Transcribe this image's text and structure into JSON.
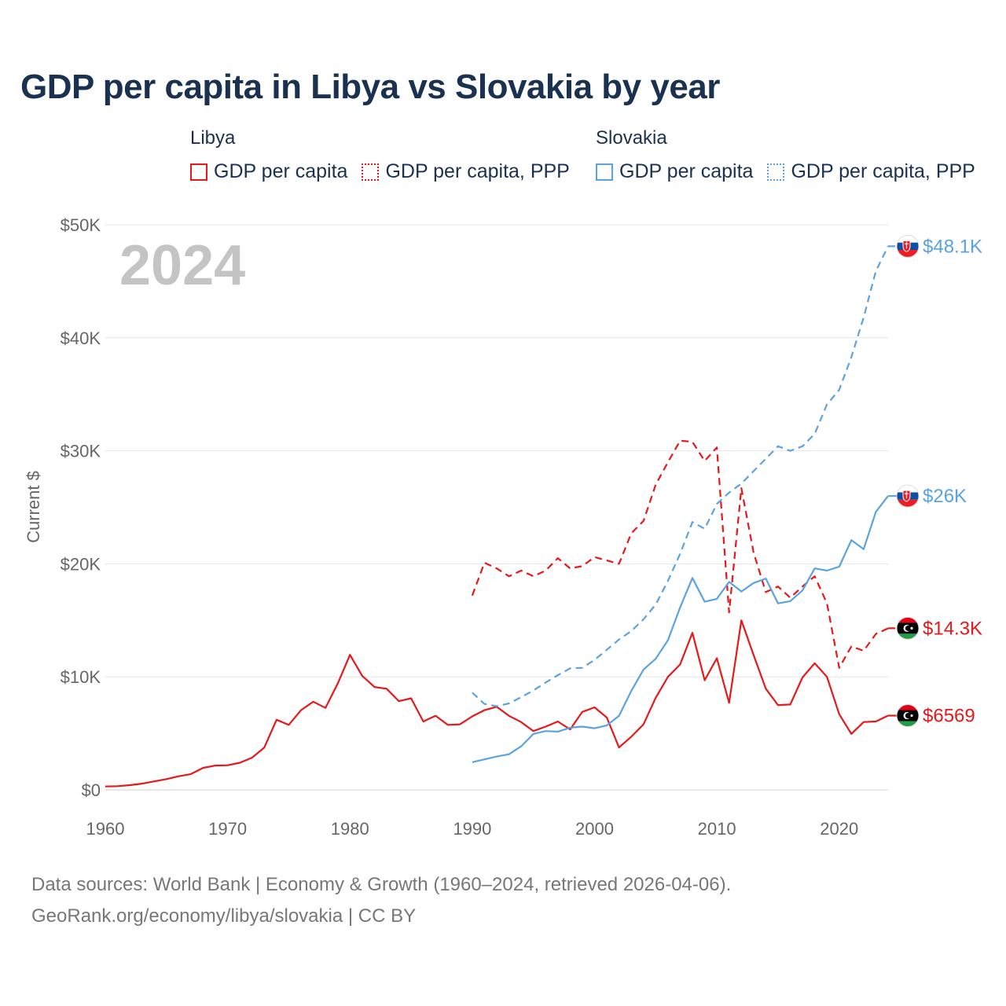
{
  "title": "GDP per capita in Libya vs Slovakia by year",
  "legend": {
    "groups": [
      {
        "country": "Libya",
        "items": [
          "GDP per capita",
          "GDP per capita, PPP"
        ],
        "color": "#e8171a"
      },
      {
        "country": "Slovakia",
        "items": [
          "GDP per capita",
          "GDP per capita, PPP"
        ],
        "color": "#5ba3e0"
      }
    ]
  },
  "footer": {
    "line1": "Data sources: World Bank | Economy & Growth (1960–2024, retrieved 2026-04-06).",
    "line2": "GeoRank.org/economy/libya/slovakia | CC BY"
  },
  "chart_data": {
    "type": "line",
    "year_label": "2024",
    "ylabel": "Current $",
    "xlim": [
      1960,
      2024
    ],
    "ylim": [
      0,
      50000
    ],
    "x_ticks": [
      1960,
      1970,
      1980,
      1990,
      2000,
      2010,
      2020
    ],
    "x_tick_labels": [
      "1960",
      "1970",
      "1980",
      "1990",
      "2000",
      "2010",
      "2020"
    ],
    "y_ticks": [
      0,
      10000,
      20000,
      30000,
      40000,
      50000
    ],
    "y_tick_labels": [
      "$0",
      "$10K",
      "$20K",
      "$30K",
      "$40K",
      "$50K"
    ],
    "grid": true,
    "series": [
      {
        "name": "Libya GDP per capita",
        "country": "Libya",
        "dash": "solid",
        "color": "#e8171a",
        "end_label": "$6569",
        "x_start": 1960,
        "values": [
          300,
          330,
          420,
          550,
          750,
          950,
          1200,
          1400,
          1950,
          2150,
          2180,
          2400,
          2850,
          3750,
          6200,
          5750,
          7050,
          7800,
          7250,
          9400,
          11950,
          10100,
          9100,
          8950,
          7850,
          8100,
          6050,
          6550,
          5750,
          5800,
          6500,
          7050,
          7350,
          6550,
          6000,
          5200,
          5600,
          6050,
          5350,
          6900,
          7300,
          6400,
          3750,
          4700,
          5800,
          8150,
          10000,
          11100,
          13900,
          9700,
          11650,
          7700,
          15000,
          11950,
          8950,
          7500,
          7550,
          9950,
          11200,
          10000,
          6700,
          4950,
          6000,
          6050,
          6569
        ]
      },
      {
        "name": "Libya GDP per capita, PPP",
        "country": "Libya",
        "dash": "dashed",
        "color": "#e8171a",
        "end_label": "$14.3K",
        "x_start": 1990,
        "values": [
          17200,
          20100,
          19600,
          18900,
          19400,
          18900,
          19400,
          20500,
          19600,
          19800,
          20600,
          20300,
          20000,
          22700,
          23800,
          27000,
          29000,
          30900,
          30800,
          29100,
          30300,
          15700,
          26700,
          21000,
          17500,
          18000,
          17000,
          18000,
          18900,
          16500,
          10800,
          12700,
          12300,
          13800,
          14300
        ]
      },
      {
        "name": "Slovakia GDP per capita",
        "country": "Slovakia",
        "dash": "solid",
        "color": "#5ba3e0",
        "end_label": "$26K",
        "x_start": 1990,
        "values": [
          2450,
          2700,
          2950,
          3150,
          3850,
          4950,
          5200,
          5150,
          5500,
          5600,
          5450,
          5700,
          6550,
          8750,
          10650,
          11600,
          13250,
          16150,
          18750,
          16650,
          16900,
          18400,
          17550,
          18300,
          18700,
          16500,
          16700,
          17650,
          19600,
          19400,
          19750,
          22100,
          21300,
          24600,
          26000
        ]
      },
      {
        "name": "Slovakia GDP per capita, PPP",
        "country": "Slovakia",
        "dash": "dashed",
        "color": "#5ba3e0",
        "end_label": "$48.1K",
        "x_start": 1990,
        "values": [
          8600,
          7600,
          7400,
          7650,
          8200,
          8800,
          9500,
          10150,
          10750,
          10800,
          11500,
          12400,
          13300,
          14050,
          15100,
          16400,
          18500,
          20900,
          23700,
          23100,
          25300,
          26300,
          27100,
          28200,
          29300,
          30400,
          30000,
          30400,
          31500,
          34100,
          35400,
          38300,
          41800,
          45900,
          48100
        ]
      }
    ]
  }
}
